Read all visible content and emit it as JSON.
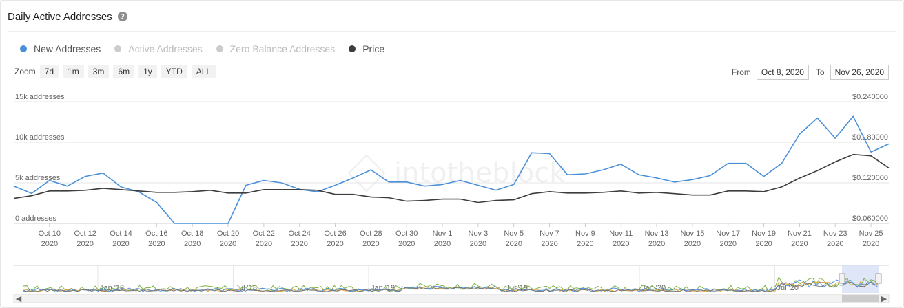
{
  "header": {
    "title": "Daily Active Addresses",
    "help_icon": "?"
  },
  "legend": [
    {
      "label": "New Addresses",
      "color": "#4a90d9",
      "active": true
    },
    {
      "label": "Active Addresses",
      "color": "#cccccc",
      "active": false
    },
    {
      "label": "Zero Balance Addresses",
      "color": "#cccccc",
      "active": false
    },
    {
      "label": "Price",
      "color": "#3d3d3d",
      "active": true
    }
  ],
  "zoom": {
    "label": "Zoom",
    "buttons": [
      "7d",
      "1m",
      "3m",
      "6m",
      "1y",
      "YTD",
      "ALL"
    ]
  },
  "range": {
    "from_label": "From",
    "from_value": "Oct 8, 2020",
    "to_label": "To",
    "to_value": "Nov 26, 2020"
  },
  "watermark": "intotheblock",
  "chart_data": {
    "type": "line",
    "y_left": {
      "ticks": [
        "0 addresses",
        "5k addresses",
        "10k addresses",
        "15k addresses"
      ],
      "range": [
        0,
        15000
      ]
    },
    "y_right": {
      "ticks": [
        "$0.060000",
        "$0.120000",
        "$0.180000",
        "$0.240000"
      ],
      "range": [
        0.06,
        0.24
      ]
    },
    "x_ticks": [
      [
        "Oct 10",
        "2020"
      ],
      [
        "Oct 12",
        "2020"
      ],
      [
        "Oct 14",
        "2020"
      ],
      [
        "Oct 16",
        "2020"
      ],
      [
        "Oct 18",
        "2020"
      ],
      [
        "Oct 20",
        "2020"
      ],
      [
        "Oct 22",
        "2020"
      ],
      [
        "Oct 24",
        "2020"
      ],
      [
        "Oct 26",
        "2020"
      ],
      [
        "Oct 28",
        "2020"
      ],
      [
        "Oct 30",
        "2020"
      ],
      [
        "Nov 1",
        "2020"
      ],
      [
        "Nov 3",
        "2020"
      ],
      [
        "Nov 5",
        "2020"
      ],
      [
        "Nov 7",
        "2020"
      ],
      [
        "Nov 9",
        "2020"
      ],
      [
        "Nov 11",
        "2020"
      ],
      [
        "Nov 13",
        "2020"
      ],
      [
        "Nov 15",
        "2020"
      ],
      [
        "Nov 17",
        "2020"
      ],
      [
        "Nov 19",
        "2020"
      ],
      [
        "Nov 21",
        "2020"
      ],
      [
        "Nov 23",
        "2020"
      ],
      [
        "Nov 25",
        "2020"
      ]
    ],
    "x_start": "Oct 8, 2020",
    "series": [
      {
        "name": "New Addresses",
        "axis": "left",
        "color": "#4a90d9",
        "values": [
          4600,
          3700,
          5300,
          4600,
          5800,
          6200,
          4500,
          3900,
          2600,
          0,
          0,
          0,
          0,
          4700,
          5300,
          5000,
          4200,
          3900,
          4700,
          5600,
          6600,
          5100,
          5100,
          4600,
          4800,
          5300,
          4700,
          4100,
          4800,
          8700,
          8600,
          6000,
          6100,
          6600,
          7300,
          6000,
          5600,
          5100,
          5400,
          5900,
          7400,
          7400,
          5800,
          7400,
          11000,
          13000,
          10500,
          13200,
          8800,
          9800
        ]
      },
      {
        "name": "Price",
        "axis": "right",
        "color": "#3d3d3d",
        "values": [
          0.097,
          0.101,
          0.108,
          0.108,
          0.109,
          0.112,
          0.11,
          0.108,
          0.106,
          0.106,
          0.107,
          0.109,
          0.105,
          0.105,
          0.11,
          0.11,
          0.11,
          0.109,
          0.103,
          0.103,
          0.099,
          0.098,
          0.093,
          0.094,
          0.096,
          0.096,
          0.091,
          0.094,
          0.095,
          0.104,
          0.107,
          0.105,
          0.105,
          0.106,
          0.108,
          0.105,
          0.106,
          0.104,
          0.102,
          0.102,
          0.108,
          0.108,
          0.107,
          0.114,
          0.127,
          0.138,
          0.151,
          0.162,
          0.16,
          0.142
        ]
      }
    ],
    "navigator": {
      "x_ticks": [
        "Jan '18",
        "Jul '18",
        "Jan '19",
        "Jul '19",
        "Jan '20",
        "Jul '20"
      ]
    }
  }
}
